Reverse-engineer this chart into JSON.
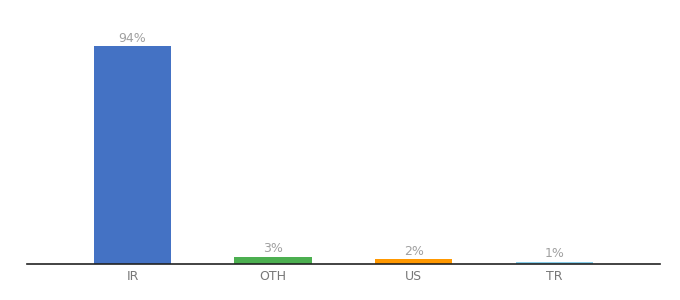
{
  "categories": [
    "IR",
    "OTH",
    "US",
    "TR"
  ],
  "values": [
    94,
    3,
    2,
    1
  ],
  "bar_colors": [
    "#4472c4",
    "#4caf50",
    "#ff9800",
    "#87ceeb"
  ],
  "labels": [
    "94%",
    "3%",
    "2%",
    "1%"
  ],
  "background_color": "#ffffff",
  "label_color": "#a0a0a0",
  "label_fontsize": 9,
  "xlabel_fontsize": 9,
  "ylim": [
    0,
    105
  ],
  "bar_width": 0.55
}
